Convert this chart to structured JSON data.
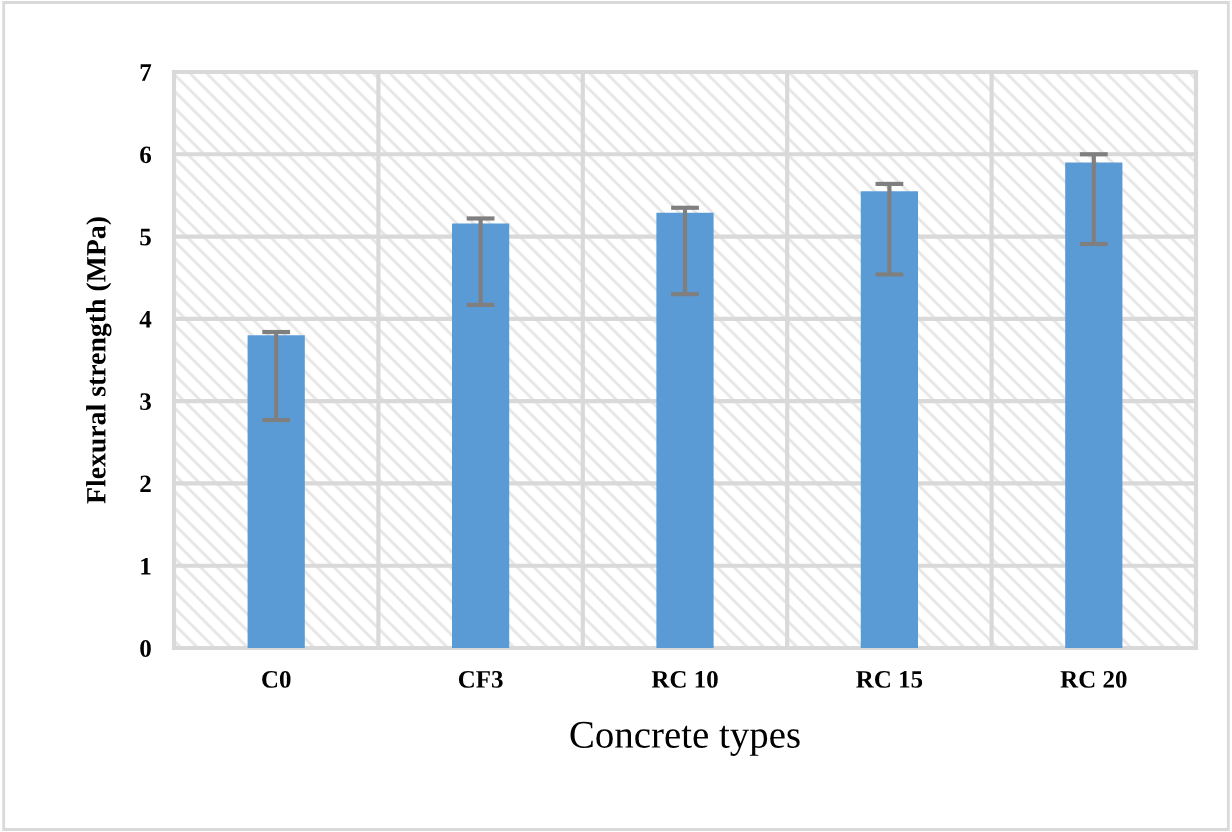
{
  "chart_data": {
    "type": "bar",
    "xlabel": "Concrete types",
    "ylabel": "Flexural strength (MPa)",
    "categories": [
      "C0",
      "CF3",
      "RC 10",
      "RC 15",
      "RC 20"
    ],
    "values": [
      3.8,
      5.16,
      5.29,
      5.55,
      5.9
    ],
    "errors": [
      [
        2.77,
        3.84
      ],
      [
        4.17,
        5.22
      ],
      [
        4.3,
        5.35
      ],
      [
        4.54,
        5.64
      ],
      [
        4.91,
        6.0
      ]
    ],
    "color": "#5b9bd5",
    "ylim": [
      0,
      7
    ],
    "yticks": [
      0,
      1,
      2,
      3,
      4,
      5,
      6,
      7
    ],
    "grid": true
  }
}
